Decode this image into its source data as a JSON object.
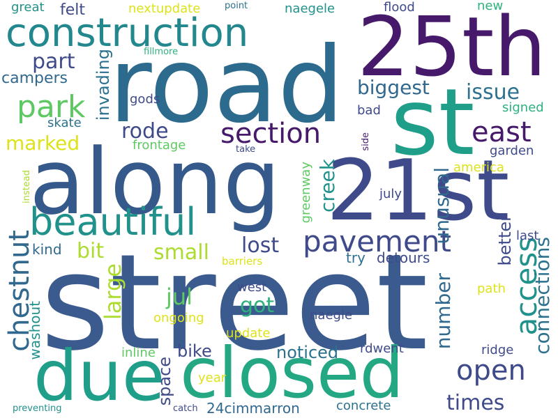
{
  "words": {
    "street": "street",
    "road": "road",
    "along": "along",
    "st": "st",
    "w25th": "25th",
    "w21st": "21st",
    "closed": "closed",
    "due": "due",
    "construction": "construction",
    "beautiful": "beautiful",
    "section": "section",
    "pavement": "pavement",
    "park": "park",
    "access": "access",
    "east": "east",
    "chestnut": "chestnut",
    "open": "open",
    "connections": "connections",
    "part": "part",
    "biggest": "biggest",
    "issue": "issue",
    "rode": "rode",
    "marked": "marked",
    "lost": "lost",
    "small": "small",
    "bit": "bit",
    "creek": "creek",
    "unusual": "unusual",
    "large": "large",
    "jul": "jul",
    "got": "got",
    "number": "number",
    "times": "times",
    "campers": "campers",
    "felt": "felt",
    "great": "great",
    "nextupdate": "nextupdate",
    "point": "point",
    "naegele_top": "naegele",
    "flood": "flood",
    "new": "new",
    "fillmore": "fillmore",
    "invading": "invading",
    "gods": "gods",
    "bad": "bad",
    "signed": "signed",
    "skate": "skate",
    "frontage": "frontage",
    "take": "take",
    "side": "side",
    "garden": "garden",
    "america": "america",
    "instead": "instead",
    "greenway": "greenway",
    "july": "july",
    "better": "better",
    "last": "last",
    "kind": "kind",
    "barriers": "barriers",
    "try": "try",
    "detours": "detours",
    "west": "west",
    "path": "path",
    "washout": "washout",
    "ongoing": "ongoing",
    "naegle": "naegle",
    "update": "update",
    "bike": "bike",
    "noticed": "noticed",
    "rdwent": "rdwent",
    "ridge": "ridge",
    "inline": "inline",
    "space": "space",
    "year": "year",
    "w24cimmarron": "24cimmarron",
    "concrete": "concrete",
    "preventing": "preventing",
    "catch": "catch"
  },
  "colors": {
    "dark_purple": "#46196b",
    "purple": "#482878",
    "indigo": "#3e4a89",
    "blue": "#31688e",
    "steel": "#2c728e",
    "teal": "#21918c",
    "teal_green": "#1fa187",
    "green": "#2db27d",
    "light_green": "#5ec962",
    "lime": "#addc30",
    "yellow": "#dde318"
  }
}
